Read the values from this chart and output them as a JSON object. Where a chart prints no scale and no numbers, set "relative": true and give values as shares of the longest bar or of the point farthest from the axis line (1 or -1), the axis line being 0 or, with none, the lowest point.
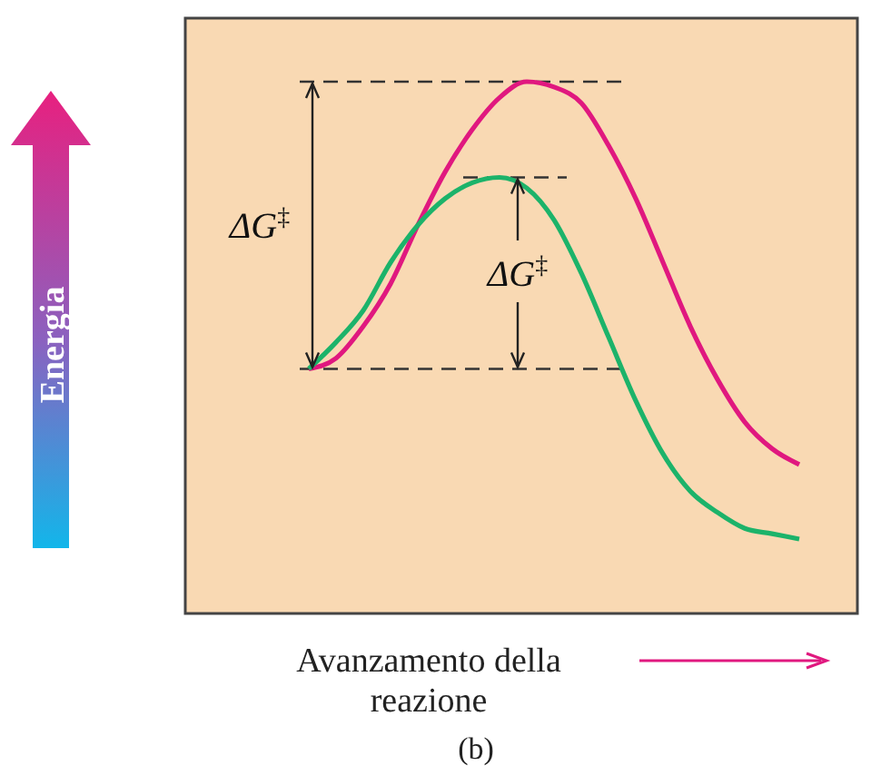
{
  "chart_data": {
    "type": "line",
    "relative": true,
    "categories": [
      null,
      null,
      null,
      null,
      null,
      null,
      null,
      null,
      null,
      null,
      null,
      null,
      null,
      null,
      null,
      null,
      null,
      null,
      null
    ],
    "series": [
      {
        "color": "#e0187f",
        "values": [
          0.46,
          0.48,
          0.54,
          0.62,
          0.73,
          0.83,
          0.91,
          0.97,
          1.0,
          0.99,
          0.96,
          0.88,
          0.78,
          0.66,
          0.54,
          0.44,
          0.36,
          0.31,
          0.28
        ]
      },
      {
        "color": "#1cb36a",
        "values": [
          0.46,
          0.51,
          0.57,
          0.66,
          0.73,
          0.78,
          0.81,
          0.82,
          0.8,
          0.74,
          0.64,
          0.52,
          0.4,
          0.3,
          0.23,
          0.19,
          0.16,
          0.15,
          0.14
        ]
      }
    ],
    "ref_lines": [
      {
        "axis": "y",
        "value": 1.0,
        "line_style": "dashed",
        "color": "#333333"
      },
      {
        "axis": "y",
        "value": 0.82,
        "line_style": "dashed",
        "color": "#333333"
      },
      {
        "axis": "y",
        "value": 0.46,
        "line_style": "dashed",
        "color": "#333333"
      }
    ],
    "annotations": [
      "ΔG$^{‡}$",
      "ΔG$^{‡}$",
      "(b)",
      "Energia"
    ],
    "xlabel": "Avanzamento della reazione",
    "marker": "none",
    "line_style": "solid"
  }
}
